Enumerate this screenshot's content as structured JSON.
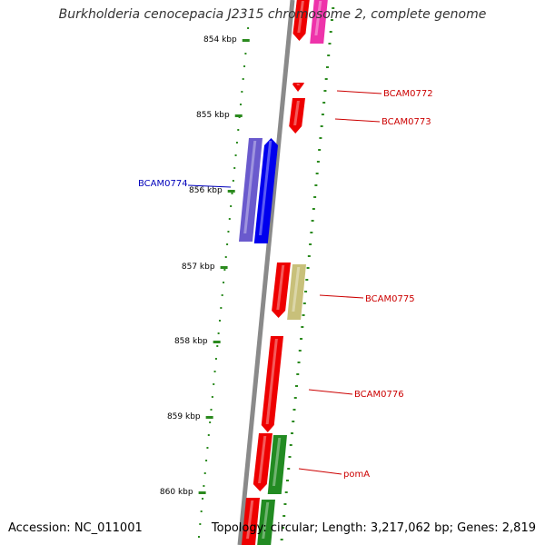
{
  "title": "Burkholderia cenocepacia J2315 chromosome 2, complete genome",
  "footer": {
    "accession": "Accession: NC_011001",
    "summary": "Topology: circular; Length: 3,217,062 bp; Genes: 2,819"
  },
  "colors": {
    "backbone": "#8a8a8a",
    "tick": "#2b8a1e",
    "tick_label": "#000000",
    "label_forward": "#cc0000",
    "label_reverse": "#0000bb",
    "gene_red": "#ee0000",
    "gene_pink": "#ee33aa",
    "gene_blue": "#0000ee",
    "gene_slateblue": "#6a5acd",
    "gene_khaki": "#c8c07a",
    "gene_green": "#228b22"
  },
  "ticks": [
    {
      "label": "854 kbp"
    },
    {
      "label": "855 kbp"
    },
    {
      "label": "856 kbp"
    },
    {
      "label": "857 kbp"
    },
    {
      "label": "858 kbp"
    },
    {
      "label": "859 kbp"
    },
    {
      "label": "860 kbp"
    }
  ],
  "genes": [
    {
      "color": "gene_red"
    },
    {
      "color": "gene_pink"
    },
    {
      "color": "gene_red"
    },
    {
      "color": "gene_red"
    },
    {
      "color": "gene_slateblue"
    },
    {
      "color": "gene_blue"
    },
    {
      "color": "gene_red"
    },
    {
      "color": "gene_khaki"
    },
    {
      "color": "gene_red"
    },
    {
      "color": "gene_red"
    },
    {
      "color": "gene_green"
    },
    {
      "color": "gene_red"
    },
    {
      "color": "gene_green"
    }
  ],
  "labels": [
    {
      "text": "BCAM0772",
      "side": "right"
    },
    {
      "text": "BCAM0773",
      "side": "right"
    },
    {
      "text": "BCAM0774",
      "side": "left"
    },
    {
      "text": "BCAM0775",
      "side": "right"
    },
    {
      "text": "BCAM0776",
      "side": "right"
    },
    {
      "text": "pomA",
      "side": "right"
    }
  ]
}
